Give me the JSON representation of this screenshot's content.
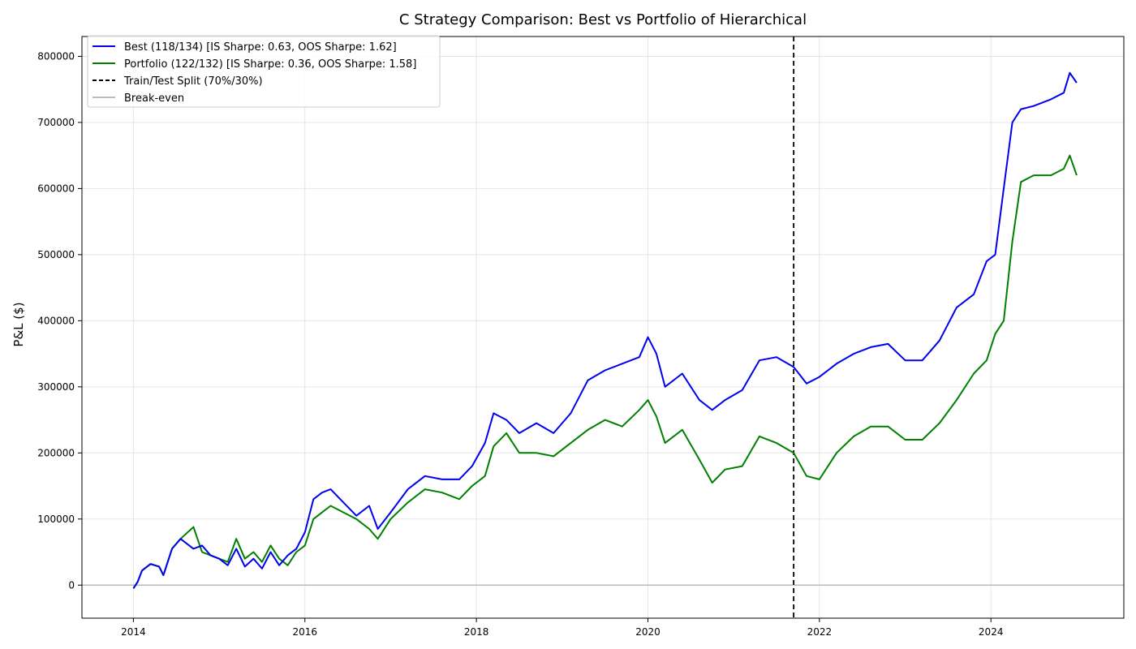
{
  "chart_data": {
    "type": "line",
    "title": "C Strategy Comparison: Best vs Portfolio of Hierarchical",
    "xlabel": "",
    "ylabel": "P&L ($)",
    "xlim": [
      2013.4,
      2025.55
    ],
    "ylim": [
      -50000,
      830000
    ],
    "xticks": [
      2014,
      2016,
      2018,
      2020,
      2022,
      2024
    ],
    "xtick_labels": [
      "2014",
      "2016",
      "2018",
      "2020",
      "2022",
      "2024"
    ],
    "yticks": [
      0,
      100000,
      200000,
      300000,
      400000,
      500000,
      600000,
      700000,
      800000
    ],
    "ytick_labels": [
      "0",
      "100000",
      "200000",
      "300000",
      "400000",
      "500000",
      "600000",
      "700000",
      "800000"
    ],
    "grid": true,
    "legend_position": "top-left",
    "split_x": 2021.7,
    "breakeven_y": 0,
    "legend": [
      {
        "label": "Best (118/134) [IS Sharpe: 0.63, OOS Sharpe: 1.62]",
        "color": "#0000ee",
        "style": "solid"
      },
      {
        "label": "Portfolio (122/132) [IS Sharpe: 0.36, OOS Sharpe: 1.58]",
        "color": "#008000",
        "style": "solid"
      },
      {
        "label": "Train/Test Split (70%/30%)",
        "color": "#000000",
        "style": "dashed"
      },
      {
        "label": "Break-even",
        "color": "#bbbbbb",
        "style": "solid"
      }
    ],
    "series": [
      {
        "name": "Best (118/134)",
        "color": "#0000ee",
        "x": [
          2014.0,
          2014.05,
          2014.1,
          2014.2,
          2014.3,
          2014.35,
          2014.45,
          2014.55,
          2014.7,
          2014.8,
          2014.9,
          2015.0,
          2015.1,
          2015.2,
          2015.3,
          2015.4,
          2015.5,
          2015.6,
          2015.7,
          2015.8,
          2015.9,
          2016.0,
          2016.1,
          2016.2,
          2016.3,
          2016.45,
          2016.6,
          2016.75,
          2016.85,
          2017.0,
          2017.2,
          2017.4,
          2017.6,
          2017.8,
          2017.95,
          2018.1,
          2018.2,
          2018.35,
          2018.5,
          2018.7,
          2018.9,
          2019.1,
          2019.3,
          2019.5,
          2019.7,
          2019.9,
          2020.0,
          2020.1,
          2020.2,
          2020.4,
          2020.6,
          2020.75,
          2020.9,
          2021.1,
          2021.3,
          2021.5,
          2021.7,
          2021.85,
          2022.0,
          2022.2,
          2022.4,
          2022.6,
          2022.8,
          2023.0,
          2023.2,
          2023.4,
          2023.6,
          2023.8,
          2023.95,
          2024.05,
          2024.15,
          2024.25,
          2024.35,
          2024.5,
          2024.7,
          2024.85,
          2024.92,
          2025.0
        ],
        "values": [
          -5000,
          5000,
          22000,
          32000,
          28000,
          15000,
          55000,
          70000,
          55000,
          60000,
          45000,
          40000,
          30000,
          55000,
          28000,
          40000,
          25000,
          50000,
          30000,
          45000,
          55000,
          80000,
          130000,
          140000,
          145000,
          125000,
          105000,
          120000,
          85000,
          110000,
          145000,
          165000,
          160000,
          160000,
          180000,
          215000,
          260000,
          250000,
          230000,
          245000,
          230000,
          260000,
          310000,
          325000,
          335000,
          345000,
          375000,
          350000,
          300000,
          320000,
          280000,
          265000,
          280000,
          295000,
          340000,
          345000,
          330000,
          305000,
          315000,
          335000,
          350000,
          360000,
          365000,
          340000,
          340000,
          370000,
          420000,
          440000,
          490000,
          500000,
          600000,
          700000,
          720000,
          725000,
          735000,
          745000,
          775000,
          760000
        ]
      },
      {
        "name": "Portfolio (122/132)",
        "color": "#008000",
        "x": [
          2014.0,
          2014.05,
          2014.1,
          2014.2,
          2014.3,
          2014.35,
          2014.45,
          2014.55,
          2014.7,
          2014.8,
          2014.9,
          2015.0,
          2015.1,
          2015.2,
          2015.3,
          2015.4,
          2015.5,
          2015.6,
          2015.7,
          2015.8,
          2015.9,
          2016.0,
          2016.1,
          2016.2,
          2016.3,
          2016.45,
          2016.6,
          2016.75,
          2016.85,
          2017.0,
          2017.2,
          2017.4,
          2017.6,
          2017.8,
          2017.95,
          2018.1,
          2018.2,
          2018.35,
          2018.5,
          2018.7,
          2018.9,
          2019.1,
          2019.3,
          2019.5,
          2019.7,
          2019.9,
          2020.0,
          2020.1,
          2020.2,
          2020.4,
          2020.6,
          2020.75,
          2020.9,
          2021.1,
          2021.3,
          2021.5,
          2021.7,
          2021.85,
          2022.0,
          2022.2,
          2022.4,
          2022.6,
          2022.8,
          2023.0,
          2023.2,
          2023.4,
          2023.6,
          2023.8,
          2023.95,
          2024.05,
          2024.15,
          2024.25,
          2024.35,
          2024.5,
          2024.7,
          2024.85,
          2024.92,
          2025.0
        ],
        "values": [
          -5000,
          5000,
          22000,
          32000,
          28000,
          15000,
          55000,
          70000,
          88000,
          50000,
          45000,
          40000,
          35000,
          70000,
          40000,
          50000,
          35000,
          60000,
          40000,
          30000,
          50000,
          60000,
          100000,
          110000,
          120000,
          110000,
          100000,
          85000,
          70000,
          100000,
          125000,
          145000,
          140000,
          130000,
          150000,
          165000,
          210000,
          230000,
          200000,
          200000,
          195000,
          215000,
          235000,
          250000,
          240000,
          265000,
          280000,
          255000,
          215000,
          235000,
          190000,
          155000,
          175000,
          180000,
          225000,
          215000,
          200000,
          165000,
          160000,
          200000,
          225000,
          240000,
          240000,
          220000,
          220000,
          245000,
          280000,
          320000,
          340000,
          380000,
          400000,
          520000,
          610000,
          620000,
          620000,
          630000,
          650000,
          620000
        ]
      }
    ]
  }
}
